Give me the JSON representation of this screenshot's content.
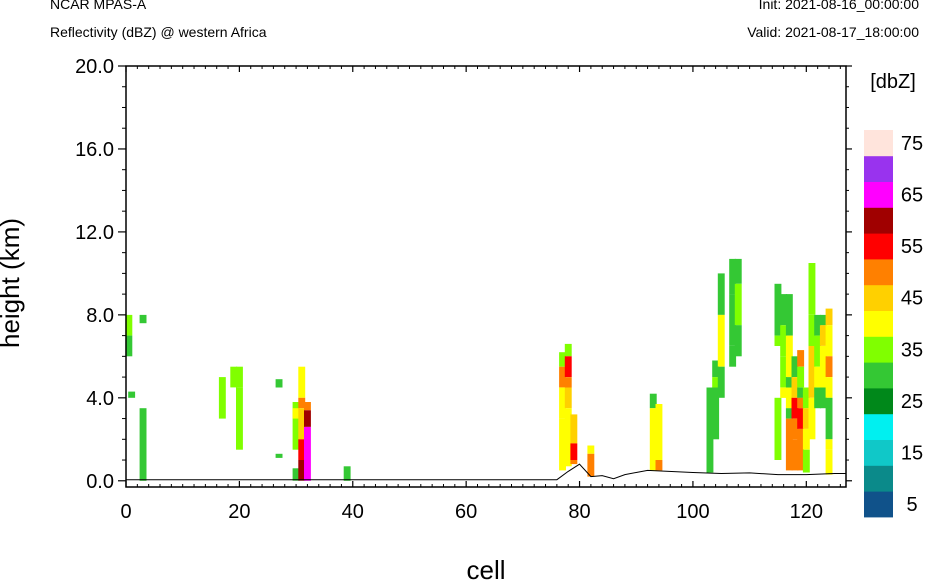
{
  "header": {
    "left_title": "NCAR MPAS-A",
    "left_subtitle": "Reflectivity (dBZ) @ western Africa",
    "right_title": "Init: 2021-08-16_00:00:00",
    "right_subtitle": "Valid: 2021-08-17_18:00:00"
  },
  "chart_data": {
    "type": "heatmap",
    "xlabel": "cell",
    "ylabel": "height (km)",
    "xlim": [
      0,
      127
    ],
    "ylim": [
      -0.3,
      20
    ],
    "xticks": [
      0,
      20,
      40,
      60,
      80,
      100,
      120
    ],
    "yticks": [
      0,
      4,
      8,
      12,
      16,
      20
    ],
    "ytick_labels": [
      "0.0",
      "4.0",
      "8.0",
      "12.0",
      "16.0",
      "20.0"
    ],
    "colorbar": {
      "unit_label": "[dbZ]",
      "bounds": [
        5,
        10,
        15,
        20,
        25,
        30,
        35,
        40,
        45,
        50,
        55,
        60,
        65,
        70,
        75
      ],
      "tick_labels": [
        "5",
        "15",
        "25",
        "35",
        "45",
        "55",
        "65",
        "75"
      ],
      "colors": [
        "#10528a",
        "#0b8a8a",
        "#10c8c8",
        "#00f0f0",
        "#00881a",
        "#34c834",
        "#80ff00",
        "#ffff00",
        "#ffd000",
        "#ff8000",
        "#ff0000",
        "#a00000",
        "#ff00ff",
        "#9933ee",
        "#ffe4dc"
      ]
    },
    "terrain": {
      "x": [
        0,
        76,
        78,
        80,
        82,
        84,
        86,
        88,
        90,
        92,
        100,
        105,
        110,
        115,
        120,
        125,
        127
      ],
      "y": [
        0.05,
        0.05,
        0.45,
        0.8,
        0.2,
        0.25,
        0.1,
        0.3,
        0.4,
        0.5,
        0.4,
        0.35,
        0.38,
        0.3,
        0.3,
        0.35,
        0.35
      ]
    },
    "columns": [
      {
        "x": 0.5,
        "cells": [
          [
            7.0,
            8.0,
            6
          ],
          [
            6.0,
            7.0,
            5
          ]
        ]
      },
      {
        "x": 1.0,
        "cells": [
          [
            4.0,
            4.3,
            5
          ]
        ]
      },
      {
        "x": 3.0,
        "cells": [
          [
            7.6,
            8.0,
            5
          ],
          [
            0.0,
            3.5,
            5
          ]
        ]
      },
      {
        "x": 17.0,
        "cells": [
          [
            3.0,
            5.0,
            6
          ]
        ]
      },
      {
        "x": 19.0,
        "cells": [
          [
            4.5,
            5.5,
            6
          ]
        ]
      },
      {
        "x": 20.0,
        "cells": [
          [
            4.5,
            5.5,
            6
          ],
          [
            1.5,
            4.5,
            6
          ]
        ]
      },
      {
        "x": 27.0,
        "cells": [
          [
            4.5,
            4.9,
            5
          ],
          [
            1.1,
            1.3,
            5
          ]
        ]
      },
      {
        "x": 30.0,
        "cells": [
          [
            0.0,
            0.6,
            5
          ],
          [
            1.5,
            3.8,
            6
          ],
          [
            3.0,
            3.5,
            7
          ]
        ]
      },
      {
        "x": 31.0,
        "cells": [
          [
            4.0,
            5.5,
            7
          ],
          [
            3.5,
            4.0,
            9
          ],
          [
            2.0,
            3.5,
            8
          ],
          [
            1.0,
            2.0,
            10
          ],
          [
            0.0,
            1.0,
            11
          ]
        ]
      },
      {
        "x": 32.0,
        "cells": [
          [
            3.4,
            3.8,
            9
          ],
          [
            2.6,
            3.4,
            11
          ],
          [
            0.0,
            2.6,
            12
          ]
        ]
      },
      {
        "x": 39.0,
        "cells": [
          [
            0.0,
            0.7,
            5
          ]
        ]
      },
      {
        "x": 77.0,
        "cells": [
          [
            5.5,
            6.2,
            6
          ],
          [
            4.5,
            5.5,
            9
          ],
          [
            3.0,
            4.5,
            7
          ],
          [
            0.5,
            3.0,
            7
          ]
        ]
      },
      {
        "x": 78.0,
        "cells": [
          [
            6.0,
            6.6,
            6
          ],
          [
            5.0,
            6.0,
            10
          ],
          [
            4.5,
            5.0,
            9
          ],
          [
            3.5,
            4.5,
            8
          ],
          [
            0.7,
            3.5,
            7
          ]
        ]
      },
      {
        "x": 79.0,
        "cells": [
          [
            1.8,
            3.2,
            8
          ],
          [
            1.0,
            1.8,
            10
          ],
          [
            0.8,
            1.0,
            9
          ]
        ]
      },
      {
        "x": 82.0,
        "cells": [
          [
            1.3,
            1.7,
            7
          ],
          [
            0.2,
            1.3,
            9
          ]
        ]
      },
      {
        "x": 93.0,
        "cells": [
          [
            3.5,
            4.2,
            5
          ],
          [
            0.5,
            3.5,
            7
          ]
        ]
      },
      {
        "x": 94.0,
        "cells": [
          [
            1.0,
            3.7,
            7
          ],
          [
            0.5,
            1.0,
            9
          ]
        ]
      },
      {
        "x": 103.0,
        "cells": [
          [
            0.4,
            4.5,
            5
          ]
        ]
      },
      {
        "x": 104.0,
        "cells": [
          [
            5.0,
            5.8,
            5
          ],
          [
            4.5,
            5.0,
            6
          ],
          [
            2.0,
            4.5,
            5
          ]
        ]
      },
      {
        "x": 105.0,
        "cells": [
          [
            8.0,
            10.0,
            5
          ],
          [
            5.5,
            8.0,
            7
          ],
          [
            4.0,
            5.5,
            5
          ]
        ]
      },
      {
        "x": 107.0,
        "cells": [
          [
            9.0,
            10.7,
            5
          ],
          [
            6.5,
            9.0,
            5
          ],
          [
            5.5,
            6.5,
            5
          ]
        ]
      },
      {
        "x": 108.0,
        "cells": [
          [
            9.5,
            10.7,
            5
          ],
          [
            7.5,
            9.5,
            6
          ],
          [
            6.0,
            7.5,
            5
          ]
        ]
      },
      {
        "x": 115.0,
        "cells": [
          [
            7.0,
            9.5,
            5
          ],
          [
            6.5,
            7.0,
            6
          ],
          [
            1.0,
            4.0,
            6
          ]
        ]
      },
      {
        "x": 116.0,
        "cells": [
          [
            7.5,
            9.0,
            5
          ],
          [
            6.0,
            7.5,
            6
          ],
          [
            4.5,
            6.0,
            6
          ],
          [
            4.0,
            4.5,
            7
          ]
        ]
      },
      {
        "x": 117.0,
        "cells": [
          [
            7.0,
            9.0,
            5
          ],
          [
            5.0,
            7.0,
            7
          ],
          [
            4.5,
            5.0,
            5
          ],
          [
            3.5,
            4.5,
            7
          ],
          [
            3.0,
            3.5,
            5
          ],
          [
            2.5,
            3.0,
            9
          ],
          [
            0.5,
            2.5,
            9
          ]
        ]
      },
      {
        "x": 118.0,
        "cells": [
          [
            5.0,
            6.0,
            5
          ],
          [
            4.0,
            5.0,
            8
          ],
          [
            3.0,
            4.0,
            10
          ],
          [
            2.0,
            3.0,
            9
          ],
          [
            0.5,
            2.0,
            9
          ]
        ]
      },
      {
        "x": 119.0,
        "cells": [
          [
            5.5,
            6.3,
            9
          ],
          [
            4.5,
            5.5,
            6
          ],
          [
            4.0,
            4.5,
            5
          ],
          [
            3.5,
            4.0,
            9
          ],
          [
            2.5,
            3.5,
            10
          ],
          [
            0.5,
            2.5,
            9
          ]
        ]
      },
      {
        "x": 120.0,
        "cells": [
          [
            3.5,
            4.5,
            6
          ],
          [
            2.5,
            3.5,
            8
          ],
          [
            1.5,
            2.5,
            7
          ],
          [
            0.4,
            1.5,
            6
          ]
        ]
      },
      {
        "x": 121.0,
        "cells": [
          [
            8.0,
            10.5,
            6
          ],
          [
            6.5,
            8.0,
            6
          ],
          [
            4.0,
            6.5,
            8
          ],
          [
            2.0,
            4.0,
            7
          ]
        ]
      },
      {
        "x": 122.0,
        "cells": [
          [
            7.0,
            8.0,
            5
          ],
          [
            5.5,
            7.0,
            6
          ],
          [
            4.5,
            5.5,
            7
          ],
          [
            3.5,
            4.5,
            5
          ]
        ]
      },
      {
        "x": 123.0,
        "cells": [
          [
            7.5,
            8.0,
            5
          ],
          [
            6.5,
            7.5,
            8
          ],
          [
            4.5,
            6.5,
            7
          ],
          [
            3.5,
            4.5,
            5
          ]
        ]
      },
      {
        "x": 124.0,
        "cells": [
          [
            7.5,
            8.3,
            8
          ],
          [
            6.0,
            7.5,
            7
          ],
          [
            5.0,
            6.0,
            9
          ],
          [
            4.0,
            5.0,
            7
          ],
          [
            2.0,
            4.0,
            5
          ],
          [
            1.5,
            2.0,
            7
          ],
          [
            0.3,
            1.5,
            7
          ]
        ]
      }
    ]
  }
}
